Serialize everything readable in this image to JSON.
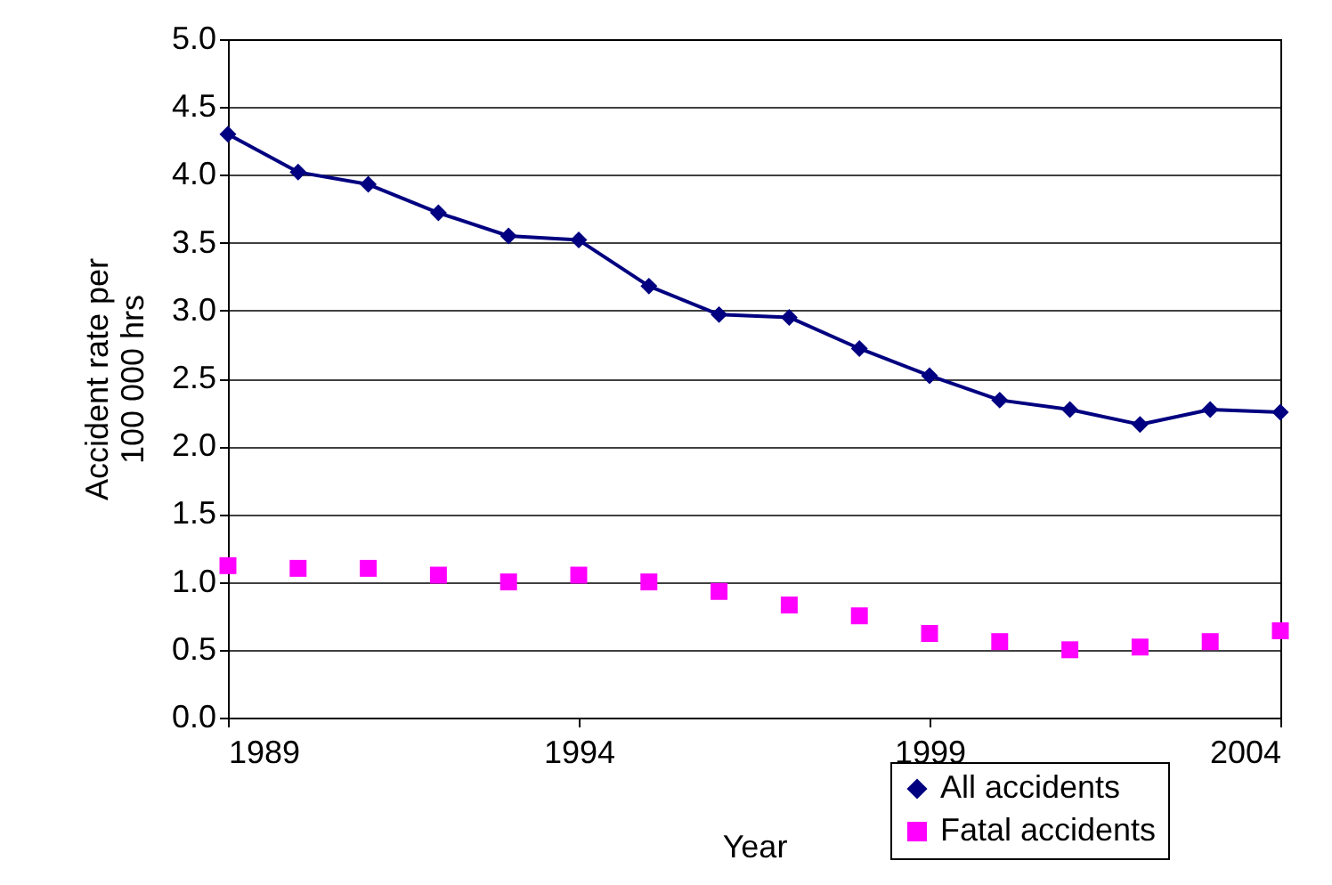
{
  "chart_data": {
    "type": "line",
    "xlabel": "Year",
    "ylabel": "Accident rate per 100 000 hrs",
    "x": [
      1989,
      1990,
      1991,
      1992,
      1993,
      1994,
      1995,
      1996,
      1997,
      1998,
      1999,
      2000,
      2001,
      2002,
      2003,
      2004
    ],
    "series": [
      {
        "name": "All accidents",
        "color": "#000080",
        "marker": "diamond",
        "values": [
          4.3,
          4.02,
          3.93,
          3.72,
          3.55,
          3.52,
          3.18,
          2.97,
          2.95,
          2.72,
          2.52,
          2.34,
          2.27,
          2.16,
          2.27,
          2.25
        ]
      },
      {
        "name": "Fatal accidents",
        "color": "#ff00ff",
        "type": "scatter",
        "marker": "square",
        "values": [
          1.12,
          1.1,
          1.1,
          1.05,
          1.0,
          1.05,
          1.0,
          0.93,
          0.83,
          0.75,
          0.62,
          0.56,
          0.5,
          0.52,
          0.56,
          0.64
        ]
      }
    ],
    "xlim": [
      1989,
      2004
    ],
    "xticks": [
      1989,
      1994,
      1999,
      2004
    ],
    "ylim": [
      0,
      5
    ],
    "yticks": [
      {
        "value": 0,
        "label": "0.0"
      },
      0.5,
      {
        "value": 1,
        "label": "1.0"
      },
      1.5,
      {
        "value": 2,
        "label": "2.0"
      },
      2.5,
      {
        "value": 3,
        "label": "3.0"
      },
      3.5,
      {
        "value": 4,
        "label": "4.0"
      },
      4.5,
      {
        "value": 5,
        "label": "5.0"
      }
    ],
    "grid": "y",
    "legend": "bottom right"
  }
}
